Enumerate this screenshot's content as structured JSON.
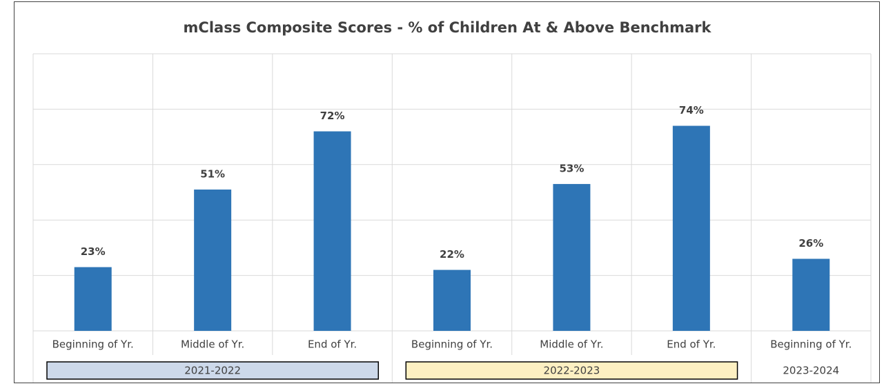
{
  "chart_data": {
    "type": "bar",
    "title": "mClass Composite Scores - % of Children At & Above Benchmark",
    "groups": [
      {
        "name": "2021-2022",
        "color": "#cdd9ea",
        "categories": [
          "Beginning of Yr.",
          "Middle of Yr.",
          "End of Yr."
        ],
        "values": [
          23,
          51,
          72
        ],
        "value_labels": [
          "23%",
          "51%",
          "72%"
        ]
      },
      {
        "name": "2022-2023",
        "color": "#fdf0c2",
        "categories": [
          "Beginning of Yr.",
          "Middle of Yr.",
          "End of Yr."
        ],
        "values": [
          22,
          53,
          74
        ],
        "value_labels": [
          "22%",
          "53%",
          "74%"
        ]
      },
      {
        "name": "2023-2024",
        "categories": [
          "Beginning of Yr."
        ],
        "values": [
          26
        ],
        "value_labels": [
          "26%"
        ]
      }
    ],
    "color": "#2e75b6",
    "ylim": [
      0,
      100
    ],
    "yticks": [
      0,
      20,
      40,
      60,
      80,
      100
    ],
    "grid": true
  }
}
